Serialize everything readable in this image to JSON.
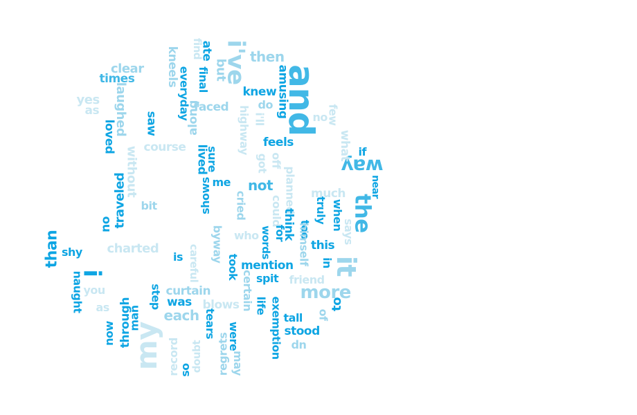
{
  "colors": {
    "dark": "#0ea5e3",
    "mid": "#41b8e6",
    "light": "#9dd6ec",
    "pale": "#c9e7f2"
  },
  "words": [
    {
      "text": "and",
      "color": "mid"
    },
    {
      "text": "the",
      "color": "mid"
    },
    {
      "text": "way",
      "color": "mid"
    },
    {
      "text": "it",
      "color": "light"
    },
    {
      "text": "my",
      "color": "pale"
    },
    {
      "text": "i",
      "color": "dark"
    },
    {
      "text": "more",
      "color": "light"
    },
    {
      "text": "i've",
      "color": "light"
    },
    {
      "text": "than",
      "color": "dark"
    },
    {
      "text": "not",
      "color": "mid"
    },
    {
      "text": "each",
      "color": "light"
    },
    {
      "text": "then",
      "color": "light"
    },
    {
      "text": "knew",
      "color": "dark"
    },
    {
      "text": "clear",
      "color": "light"
    },
    {
      "text": "times",
      "color": "mid"
    },
    {
      "text": "yes",
      "color": "pale"
    },
    {
      "text": "as",
      "color": "pale"
    },
    {
      "text": "laughed",
      "color": "light"
    },
    {
      "text": "loved",
      "color": "dark"
    },
    {
      "text": "saw",
      "color": "dark"
    },
    {
      "text": "without",
      "color": "pale"
    },
    {
      "text": "course",
      "color": "pale"
    },
    {
      "text": "faced",
      "color": "light"
    },
    {
      "text": "everyday",
      "color": "dark"
    },
    {
      "text": "along",
      "color": "light"
    },
    {
      "text": "kneels",
      "color": "light"
    },
    {
      "text": "find",
      "color": "pale"
    },
    {
      "text": "ate",
      "color": "dark"
    },
    {
      "text": "final",
      "color": "dark"
    },
    {
      "text": "but",
      "color": "light"
    },
    {
      "text": "amusing",
      "color": "dark"
    },
    {
      "text": "do",
      "color": "light"
    },
    {
      "text": "i'll",
      "color": "pale"
    },
    {
      "text": "highway",
      "color": "pale"
    },
    {
      "text": "feels",
      "color": "dark"
    },
    {
      "text": "got",
      "color": "pale"
    },
    {
      "text": "off",
      "color": "pale"
    },
    {
      "text": "planned",
      "color": "pale"
    },
    {
      "text": "no",
      "color": "pale"
    },
    {
      "text": "few",
      "color": "pale"
    },
    {
      "text": "what",
      "color": "pale"
    },
    {
      "text": "if",
      "color": "dark"
    },
    {
      "text": "near",
      "color": "dark"
    },
    {
      "text": "lived",
      "color": "dark"
    },
    {
      "text": "sure",
      "color": "dark"
    },
    {
      "text": "me",
      "color": "dark"
    },
    {
      "text": "shows",
      "color": "dark"
    },
    {
      "text": "traveled",
      "color": "dark"
    },
    {
      "text": "bit",
      "color": "light"
    },
    {
      "text": "no",
      "color": "dark"
    },
    {
      "text": "charted",
      "color": "pale"
    },
    {
      "text": "shy",
      "color": "dark"
    },
    {
      "text": "naught",
      "color": "dark"
    },
    {
      "text": "you",
      "color": "pale"
    },
    {
      "text": "as",
      "color": "pale"
    },
    {
      "text": "now",
      "color": "dark"
    },
    {
      "text": "through",
      "color": "dark"
    },
    {
      "text": "man",
      "color": "dark"
    },
    {
      "text": "cried",
      "color": "light"
    },
    {
      "text": "could",
      "color": "pale"
    },
    {
      "text": "think",
      "color": "dark"
    },
    {
      "text": "too",
      "color": "dark"
    },
    {
      "text": "himself",
      "color": "light"
    },
    {
      "text": "much",
      "color": "pale"
    },
    {
      "text": "truly",
      "color": "dark"
    },
    {
      "text": "when",
      "color": "dark"
    },
    {
      "text": "says",
      "color": "pale"
    },
    {
      "text": "this",
      "color": "dark"
    },
    {
      "text": "in",
      "color": "dark"
    },
    {
      "text": "who",
      "color": "pale"
    },
    {
      "text": "words",
      "color": "dark"
    },
    {
      "text": "for",
      "color": "dark"
    },
    {
      "text": "careful",
      "color": "pale"
    },
    {
      "text": "is",
      "color": "dark"
    },
    {
      "text": "byway",
      "color": "light"
    },
    {
      "text": "took",
      "color": "dark"
    },
    {
      "text": "mention",
      "color": "dark"
    },
    {
      "text": "certain",
      "color": "light"
    },
    {
      "text": "spit",
      "color": "dark"
    },
    {
      "text": "friend",
      "color": "pale"
    },
    {
      "text": "step",
      "color": "dark"
    },
    {
      "text": "curtain",
      "color": "light"
    },
    {
      "text": "was",
      "color": "dark"
    },
    {
      "text": "blows",
      "color": "pale"
    },
    {
      "text": "life",
      "color": "dark"
    },
    {
      "text": "exemption",
      "color": "dark"
    },
    {
      "text": "to",
      "color": "dark"
    },
    {
      "text": "of",
      "color": "light"
    },
    {
      "text": "tall",
      "color": "dark"
    },
    {
      "text": "stood",
      "color": "dark"
    },
    {
      "text": "up",
      "color": "light"
    },
    {
      "text": "record",
      "color": "pale"
    },
    {
      "text": "doubt",
      "color": "pale"
    },
    {
      "text": "so",
      "color": "dark"
    },
    {
      "text": "tears",
      "color": "dark"
    },
    {
      "text": "regrets",
      "color": "light"
    },
    {
      "text": "were",
      "color": "dark"
    },
    {
      "text": "may",
      "color": "light"
    }
  ]
}
